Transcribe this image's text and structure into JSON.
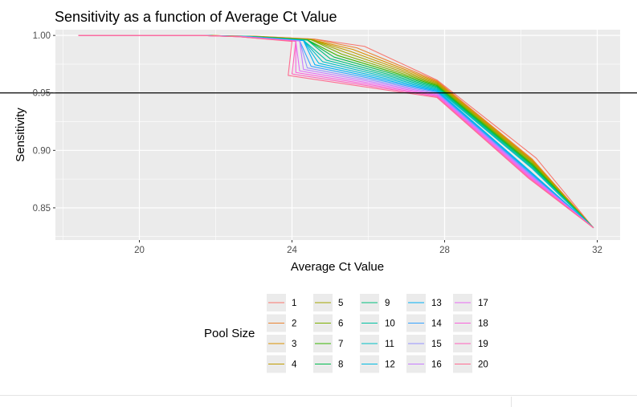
{
  "chart_data": {
    "type": "line",
    "title": "Sensitivity as a function of Average Ct Value",
    "xlabel": "Average Ct Value",
    "ylabel": "Sensitivity",
    "xlim": [
      17.8,
      32.6
    ],
    "ylim": [
      0.822,
      1.005
    ],
    "x_ticks": [
      20,
      24,
      28,
      32
    ],
    "y_ticks": [
      0.85,
      0.9,
      0.95,
      1.0
    ],
    "x_tick_labels": [
      "20",
      "24",
      "28",
      "32"
    ],
    "y_tick_labels": [
      "0.85",
      "0.90",
      "0.95",
      "1.00"
    ],
    "reference_line": {
      "y": 0.95,
      "color": "#000000"
    },
    "grid": true,
    "legend_title": "Pool Size",
    "legend_position": "bottom",
    "series": [
      {
        "name": "1",
        "color": "#F8766D",
        "x": [
          18.4,
          21.6,
          23.1,
          24.6,
          25.9,
          27.8,
          30.4,
          31.9
        ],
        "y": [
          1.0,
          1.0,
          0.9992,
          0.9968,
          0.9905,
          0.9612,
          0.8933,
          0.8326
        ]
      },
      {
        "name": "2",
        "color": "#EA8331",
        "x": [
          18.4,
          21.6,
          23.1,
          24.6,
          25.7,
          27.8,
          30.3,
          31.9
        ],
        "y": [
          1.0,
          1.0,
          0.9992,
          0.9967,
          0.9892,
          0.9604,
          0.8923,
          0.8326
        ]
      },
      {
        "name": "3",
        "color": "#D89000",
        "x": [
          18.4,
          21.6,
          23.0,
          24.5,
          25.6,
          27.8,
          30.3,
          31.9
        ],
        "y": [
          1.0,
          1.0,
          0.9992,
          0.9966,
          0.9878,
          0.9596,
          0.8914,
          0.8326
        ]
      },
      {
        "name": "4",
        "color": "#C09B00",
        "x": [
          18.4,
          21.6,
          23.0,
          24.5,
          25.5,
          27.8,
          30.3,
          31.9
        ],
        "y": [
          1.0,
          1.0,
          0.9992,
          0.9965,
          0.9865,
          0.9588,
          0.8905,
          0.8326
        ]
      },
      {
        "name": "5",
        "color": "#A3A500",
        "x": [
          18.4,
          21.6,
          23.0,
          24.5,
          25.4,
          27.8,
          30.3,
          31.9
        ],
        "y": [
          1.0,
          1.0,
          0.9992,
          0.9964,
          0.9852,
          0.958,
          0.8896,
          0.8326
        ]
      },
      {
        "name": "6",
        "color": "#7CAE00",
        "x": [
          18.4,
          21.6,
          22.9,
          24.5,
          25.3,
          27.8,
          30.3,
          31.9
        ],
        "y": [
          1.0,
          1.0,
          0.9991,
          0.9963,
          0.9838,
          0.9572,
          0.8886,
          0.8326
        ]
      },
      {
        "name": "7",
        "color": "#39B600",
        "x": [
          18.4,
          21.6,
          22.9,
          24.4,
          25.2,
          27.8,
          30.3,
          31.9
        ],
        "y": [
          1.0,
          1.0,
          0.9991,
          0.9962,
          0.9825,
          0.9564,
          0.8877,
          0.8326
        ]
      },
      {
        "name": "8",
        "color": "#00BB4E",
        "x": [
          18.4,
          21.6,
          22.9,
          24.4,
          25.1,
          27.8,
          30.3,
          31.9
        ],
        "y": [
          1.0,
          1.0,
          0.9991,
          0.9961,
          0.9812,
          0.9556,
          0.8868,
          0.8326
        ]
      },
      {
        "name": "9",
        "color": "#00BF7D",
        "x": [
          18.4,
          21.6,
          22.9,
          24.4,
          25.0,
          27.8,
          30.3,
          31.9
        ],
        "y": [
          1.0,
          1.0,
          0.9991,
          0.996,
          0.9798,
          0.9548,
          0.8859,
          0.8326
        ]
      },
      {
        "name": "10",
        "color": "#00C1A3",
        "x": [
          18.4,
          21.6,
          22.8,
          24.3,
          24.9,
          27.8,
          30.3,
          31.9
        ],
        "y": [
          1.0,
          1.0,
          0.9991,
          0.9958,
          0.9785,
          0.954,
          0.8849,
          0.8326
        ]
      },
      {
        "name": "11",
        "color": "#00BFC4",
        "x": [
          18.4,
          21.6,
          22.8,
          24.3,
          24.8,
          27.8,
          30.3,
          31.9
        ],
        "y": [
          1.0,
          1.0,
          0.9991,
          0.9957,
          0.9772,
          0.9532,
          0.884,
          0.8326
        ]
      },
      {
        "name": "12",
        "color": "#00BAE0",
        "x": [
          18.4,
          21.6,
          22.8,
          24.3,
          24.7,
          27.8,
          30.2,
          31.9
        ],
        "y": [
          1.0,
          1.0,
          0.999,
          0.9956,
          0.9758,
          0.9524,
          0.8831,
          0.8326
        ]
      },
      {
        "name": "13",
        "color": "#00B0F6",
        "x": [
          18.4,
          21.6,
          22.8,
          24.3,
          24.6,
          27.8,
          30.2,
          31.9
        ],
        "y": [
          1.0,
          1.0,
          0.999,
          0.9955,
          0.9745,
          0.9516,
          0.8822,
          0.8326
        ]
      },
      {
        "name": "14",
        "color": "#35A2FF",
        "x": [
          18.4,
          21.6,
          22.7,
          24.2,
          24.5,
          27.8,
          30.2,
          31.9
        ],
        "y": [
          1.0,
          1.0,
          0.999,
          0.9954,
          0.9732,
          0.9508,
          0.8812,
          0.8326
        ]
      },
      {
        "name": "15",
        "color": "#9590FF",
        "x": [
          18.4,
          21.6,
          22.7,
          24.2,
          24.4,
          27.8,
          30.2,
          31.9
        ],
        "y": [
          1.0,
          1.0,
          0.999,
          0.9953,
          0.9718,
          0.95,
          0.8803,
          0.8326
        ]
      },
      {
        "name": "16",
        "color": "#C77CFF",
        "x": [
          18.4,
          21.6,
          22.7,
          24.2,
          24.3,
          27.8,
          30.2,
          31.9
        ],
        "y": [
          1.0,
          1.0,
          0.999,
          0.9952,
          0.9705,
          0.9492,
          0.8794,
          0.8326
        ]
      },
      {
        "name": "17",
        "color": "#E76BF3",
        "x": [
          18.4,
          21.6,
          22.6,
          24.1,
          24.2,
          27.8,
          30.2,
          31.9
        ],
        "y": [
          1.0,
          1.0,
          0.9989,
          0.9951,
          0.9692,
          0.9484,
          0.8785,
          0.8326
        ]
      },
      {
        "name": "18",
        "color": "#FA62DB",
        "x": [
          18.4,
          21.6,
          22.6,
          24.1,
          24.1,
          27.8,
          30.2,
          31.9
        ],
        "y": [
          1.0,
          1.0,
          0.9989,
          0.995,
          0.9678,
          0.9476,
          0.8775,
          0.8326
        ]
      },
      {
        "name": "19",
        "color": "#FF62BC",
        "x": [
          18.4,
          21.6,
          22.6,
          24.1,
          24.0,
          27.8,
          30.2,
          31.9
        ],
        "y": [
          1.0,
          1.0,
          0.9989,
          0.9949,
          0.9665,
          0.9468,
          0.8766,
          0.8326
        ]
      },
      {
        "name": "20",
        "color": "#FF6C91",
        "x": [
          18.4,
          21.6,
          22.6,
          24.0,
          23.9,
          27.8,
          30.2,
          31.9
        ],
        "y": [
          1.0,
          1.0,
          0.9989,
          0.9948,
          0.9652,
          0.946,
          0.8757,
          0.8326
        ]
      }
    ]
  }
}
